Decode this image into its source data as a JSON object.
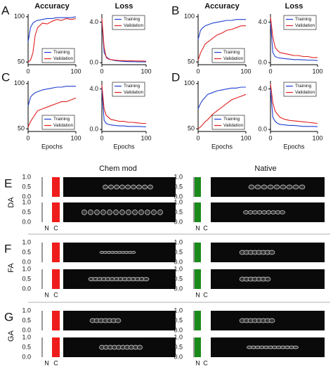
{
  "column_headers": [
    "Chem mod",
    "Native"
  ],
  "chart_data": [
    {
      "type": "line",
      "panel": "A",
      "title": "Accuracy",
      "x": [
        0,
        5,
        10,
        15,
        20,
        30,
        40,
        50,
        60,
        70,
        80,
        90,
        100
      ],
      "xlim": [
        0,
        100
      ],
      "xticks": [
        0,
        100
      ],
      "ylim": [
        47,
        103
      ],
      "yticks": [
        50,
        100
      ],
      "legend": "lower right",
      "series": [
        {
          "name": "Training",
          "color": "#1f3fd0",
          "values": [
            72,
            88,
            93,
            95,
            96,
            97,
            98,
            98,
            99,
            99,
            99,
            99,
            100
          ]
        },
        {
          "name": "Validation",
          "color": "#e02020",
          "values": [
            50,
            52,
            60,
            80,
            88,
            93,
            92,
            95,
            97,
            96,
            98,
            97,
            98
          ]
        }
      ]
    },
    {
      "type": "line",
      "title": "Loss",
      "x": [
        0,
        5,
        10,
        15,
        20,
        30,
        40,
        50,
        60,
        70,
        80,
        90,
        100
      ],
      "xlim": [
        0,
        100
      ],
      "xticks": [
        0,
        100
      ],
      "ylim": [
        -0.2,
        4.8
      ],
      "yticks": [
        {
          "value": 0,
          "label": "0.0"
        },
        {
          "value": 4,
          "label": "4.0"
        }
      ],
      "legend": "upper right",
      "series": [
        {
          "name": "Training",
          "color": "#1f3fd0",
          "values": [
            4.2,
            1.0,
            0.6,
            0.4,
            0.3,
            0.2,
            0.15,
            0.12,
            0.1,
            0.1,
            0.08,
            0.08,
            0.07
          ]
        },
        {
          "name": "Validation",
          "color": "#e02020",
          "values": [
            4.4,
            1.5,
            0.5,
            0.35,
            0.3,
            0.25,
            0.2,
            0.2,
            0.18,
            0.18,
            0.16,
            0.16,
            0.15
          ]
        }
      ]
    },
    {
      "type": "line",
      "panel": "B",
      "title": "Accuracy",
      "x": [
        0,
        5,
        10,
        15,
        20,
        30,
        40,
        50,
        60,
        70,
        80,
        90,
        100
      ],
      "xlim": [
        0,
        100
      ],
      "xticks": [
        0,
        100
      ],
      "ylim": [
        47,
        103
      ],
      "yticks": [
        50,
        100
      ],
      "legend": "lower right",
      "series": [
        {
          "name": "Training",
          "color": "#1f3fd0",
          "values": [
            75,
            85,
            88,
            90,
            91,
            93,
            94,
            95,
            96,
            96,
            97,
            97,
            97
          ]
        },
        {
          "name": "Validation",
          "color": "#e02020",
          "values": [
            52,
            60,
            65,
            70,
            72,
            76,
            80,
            82,
            85,
            86,
            88,
            90,
            90
          ]
        }
      ]
    },
    {
      "type": "line",
      "title": "Loss",
      "x": [
        0,
        5,
        10,
        15,
        20,
        30,
        40,
        50,
        60,
        70,
        80,
        90,
        100
      ],
      "xlim": [
        0,
        100
      ],
      "xticks": [
        0,
        100
      ],
      "ylim": [
        -0.2,
        4.8
      ],
      "yticks": [
        {
          "value": 0,
          "label": "0.0"
        },
        {
          "value": 4,
          "label": "4.0"
        }
      ],
      "legend": "upper right",
      "series": [
        {
          "name": "Training",
          "color": "#1f3fd0",
          "values": [
            4.0,
            1.0,
            0.6,
            0.5,
            0.45,
            0.4,
            0.35,
            0.3,
            0.3,
            0.28,
            0.25,
            0.25,
            0.2
          ]
        },
        {
          "name": "Validation",
          "color": "#e02020",
          "values": [
            4.5,
            2.5,
            1.5,
            1.2,
            1.0,
            0.9,
            0.8,
            0.7,
            0.7,
            0.6,
            0.6,
            0.5,
            0.5
          ]
        }
      ]
    },
    {
      "type": "line",
      "panel": "C",
      "xlabel": "Epochs",
      "x": [
        0,
        5,
        10,
        15,
        20,
        30,
        40,
        50,
        60,
        70,
        80,
        90,
        100
      ],
      "xlim": [
        0,
        100
      ],
      "xticks": [
        0,
        100
      ],
      "ylim": [
        47,
        103
      ],
      "yticks": [
        50,
        100
      ],
      "legend": "lower right",
      "series": [
        {
          "name": "Training",
          "color": "#1f3fd0",
          "values": [
            75,
            85,
            88,
            90,
            91,
            93,
            94,
            95,
            96,
            96,
            97,
            97,
            97
          ]
        },
        {
          "name": "Validation",
          "color": "#e02020",
          "values": [
            52,
            58,
            62,
            66,
            70,
            72,
            74,
            76,
            78,
            80,
            80,
            82,
            84
          ]
        }
      ]
    },
    {
      "type": "line",
      "xlabel": "Epochs",
      "x": [
        0,
        5,
        10,
        15,
        20,
        30,
        40,
        50,
        60,
        70,
        80,
        90,
        100
      ],
      "xlim": [
        0,
        100
      ],
      "xticks": [
        0,
        100
      ],
      "ylim": [
        -0.2,
        4.8
      ],
      "yticks": [
        {
          "value": 0,
          "label": "0.0"
        },
        {
          "value": 4,
          "label": "4.0"
        }
      ],
      "legend": "upper right",
      "series": [
        {
          "name": "Training",
          "color": "#1f3fd0",
          "values": [
            4.0,
            0.9,
            0.6,
            0.5,
            0.45,
            0.4,
            0.35,
            0.35,
            0.3,
            0.3,
            0.3,
            0.28,
            0.25
          ]
        },
        {
          "name": "Validation",
          "color": "#e02020",
          "values": [
            4.4,
            2.0,
            1.4,
            1.2,
            1.0,
            0.9,
            0.8,
            0.8,
            0.7,
            0.7,
            0.65,
            0.6,
            0.6
          ]
        }
      ]
    },
    {
      "type": "line",
      "panel": "D",
      "xlabel": "Epochs",
      "x": [
        0,
        5,
        10,
        15,
        20,
        30,
        40,
        50,
        60,
        70,
        80,
        90,
        100
      ],
      "xlim": [
        0,
        100
      ],
      "xticks": [
        0,
        100
      ],
      "ylim": [
        47,
        103
      ],
      "yticks": [
        50,
        100
      ],
      "legend": "lower right",
      "series": [
        {
          "name": "Training",
          "color": "#1f3fd0",
          "values": [
            72,
            78,
            82,
            85,
            88,
            90,
            92,
            93,
            94,
            95,
            95,
            96,
            96
          ]
        },
        {
          "name": "Validation",
          "color": "#e02020",
          "values": [
            50,
            52,
            55,
            58,
            60,
            66,
            70,
            74,
            78,
            82,
            84,
            86,
            88
          ]
        }
      ]
    },
    {
      "type": "line",
      "xlabel": "Epochs",
      "x": [
        0,
        5,
        10,
        15,
        20,
        30,
        40,
        50,
        60,
        70,
        80,
        90,
        100
      ],
      "xlim": [
        0,
        100
      ],
      "xticks": [
        0,
        100
      ],
      "ylim": [
        -0.2,
        4.8
      ],
      "yticks": [
        {
          "value": 0,
          "label": "0.0"
        },
        {
          "value": 4,
          "label": "4.0"
        }
      ],
      "legend": "upper right",
      "series": [
        {
          "name": "Training",
          "color": "#1f3fd0",
          "values": [
            4.0,
            1.2,
            0.8,
            0.6,
            0.5,
            0.45,
            0.4,
            0.4,
            0.35,
            0.3,
            0.3,
            0.3,
            0.28
          ]
        },
        {
          "name": "Validation",
          "color": "#e02020",
          "values": [
            4.5,
            2.6,
            1.8,
            1.5,
            1.2,
            1.0,
            0.9,
            0.85,
            0.8,
            0.75,
            0.7,
            0.65,
            0.6
          ]
        }
      ]
    },
    {
      "type": "bar",
      "panel": "E",
      "row_label": "DA",
      "categories": [
        null,
        null
      ],
      "values": [
        0,
        1
      ],
      "color": "#ee1c1c",
      "ylim": [
        0,
        1
      ],
      "yticks": [
        {
          "value": 0,
          "label": "0.0"
        },
        0.5,
        {
          "value": 1,
          "label": "1.0"
        }
      ]
    },
    {
      "type": "bar",
      "categories": [
        null,
        null
      ],
      "values": [
        1,
        0
      ],
      "color": "#1a8a1a",
      "ylim": [
        0,
        1
      ],
      "yticks": [
        {
          "value": 0,
          "label": "0.0"
        },
        0.5,
        {
          "value": 1,
          "label": "1.0"
        }
      ]
    },
    {
      "type": "bar",
      "categories": [
        "N",
        "C"
      ],
      "values": [
        0,
        1
      ],
      "color": "#ee1c1c",
      "ylim": [
        0,
        1
      ],
      "yticks": [
        {
          "value": 0,
          "label": "0.0"
        },
        0.5,
        {
          "value": 1,
          "label": "1.0"
        }
      ]
    },
    {
      "type": "bar",
      "categories": [
        "N",
        "C"
      ],
      "values": [
        1,
        0
      ],
      "color": "#1a8a1a",
      "ylim": [
        0,
        1
      ],
      "yticks": [
        {
          "value": 0,
          "label": "0.0"
        },
        0.5,
        {
          "value": 1,
          "label": "1.0"
        }
      ]
    },
    {
      "type": "bar",
      "panel": "F",
      "row_label": "FA",
      "categories": [
        null,
        null
      ],
      "values": [
        0,
        1
      ],
      "color": "#ee1c1c",
      "ylim": [
        0,
        1
      ],
      "yticks": [
        {
          "value": 0,
          "label": "0.0"
        },
        0.5,
        {
          "value": 1,
          "label": "1.0"
        }
      ]
    },
    {
      "type": "bar",
      "categories": [
        null,
        null
      ],
      "values": [
        1,
        0
      ],
      "color": "#1a8a1a",
      "ylim": [
        0,
        1
      ],
      "yticks": [
        {
          "value": 0,
          "label": "0.0"
        },
        0.5,
        {
          "value": 1,
          "label": "1.0"
        }
      ]
    },
    {
      "type": "bar",
      "categories": [
        "N",
        "C"
      ],
      "values": [
        0,
        1
      ],
      "color": "#ee1c1c",
      "ylim": [
        0,
        1
      ],
      "yticks": [
        {
          "value": 0,
          "label": "0.0"
        },
        0.5,
        {
          "value": 1,
          "label": "1.0"
        }
      ]
    },
    {
      "type": "bar",
      "categories": [
        "N",
        "C"
      ],
      "values": [
        1,
        0
      ],
      "color": "#1a8a1a",
      "ylim": [
        0,
        1
      ],
      "yticks": [
        {
          "value": 0,
          "label": "0.0"
        },
        0.5,
        {
          "value": 1,
          "label": "1.0"
        }
      ]
    },
    {
      "type": "bar",
      "panel": "G",
      "row_label": "GA",
      "categories": [
        null,
        null
      ],
      "values": [
        0,
        1
      ],
      "color": "#ee1c1c",
      "ylim": [
        0,
        1
      ],
      "yticks": [
        {
          "value": 0,
          "label": "0.0"
        },
        0.5,
        {
          "value": 1,
          "label": "1.0"
        }
      ]
    },
    {
      "type": "bar",
      "categories": [
        null,
        null
      ],
      "values": [
        1,
        0
      ],
      "color": "#1a8a1a",
      "ylim": [
        0,
        1
      ],
      "yticks": [
        {
          "value": 0,
          "label": "0.0"
        },
        0.5,
        {
          "value": 1,
          "label": "1.0"
        }
      ]
    },
    {
      "type": "bar",
      "categories": [
        "N",
        "C"
      ],
      "values": [
        0,
        1
      ],
      "color": "#ee1c1c",
      "ylim": [
        0,
        1
      ],
      "yticks": [
        {
          "value": 0,
          "label": "0.0"
        },
        0.5,
        {
          "value": 1,
          "label": "1.0"
        }
      ]
    },
    {
      "type": "bar",
      "categories": [
        "N",
        "C"
      ],
      "values": [
        1,
        0
      ],
      "color": "#1a8a1a",
      "ylim": [
        0,
        1
      ],
      "yticks": [
        {
          "value": 0,
          "label": "0.0"
        },
        0.5,
        {
          "value": 1,
          "label": "1.0"
        }
      ]
    }
  ]
}
